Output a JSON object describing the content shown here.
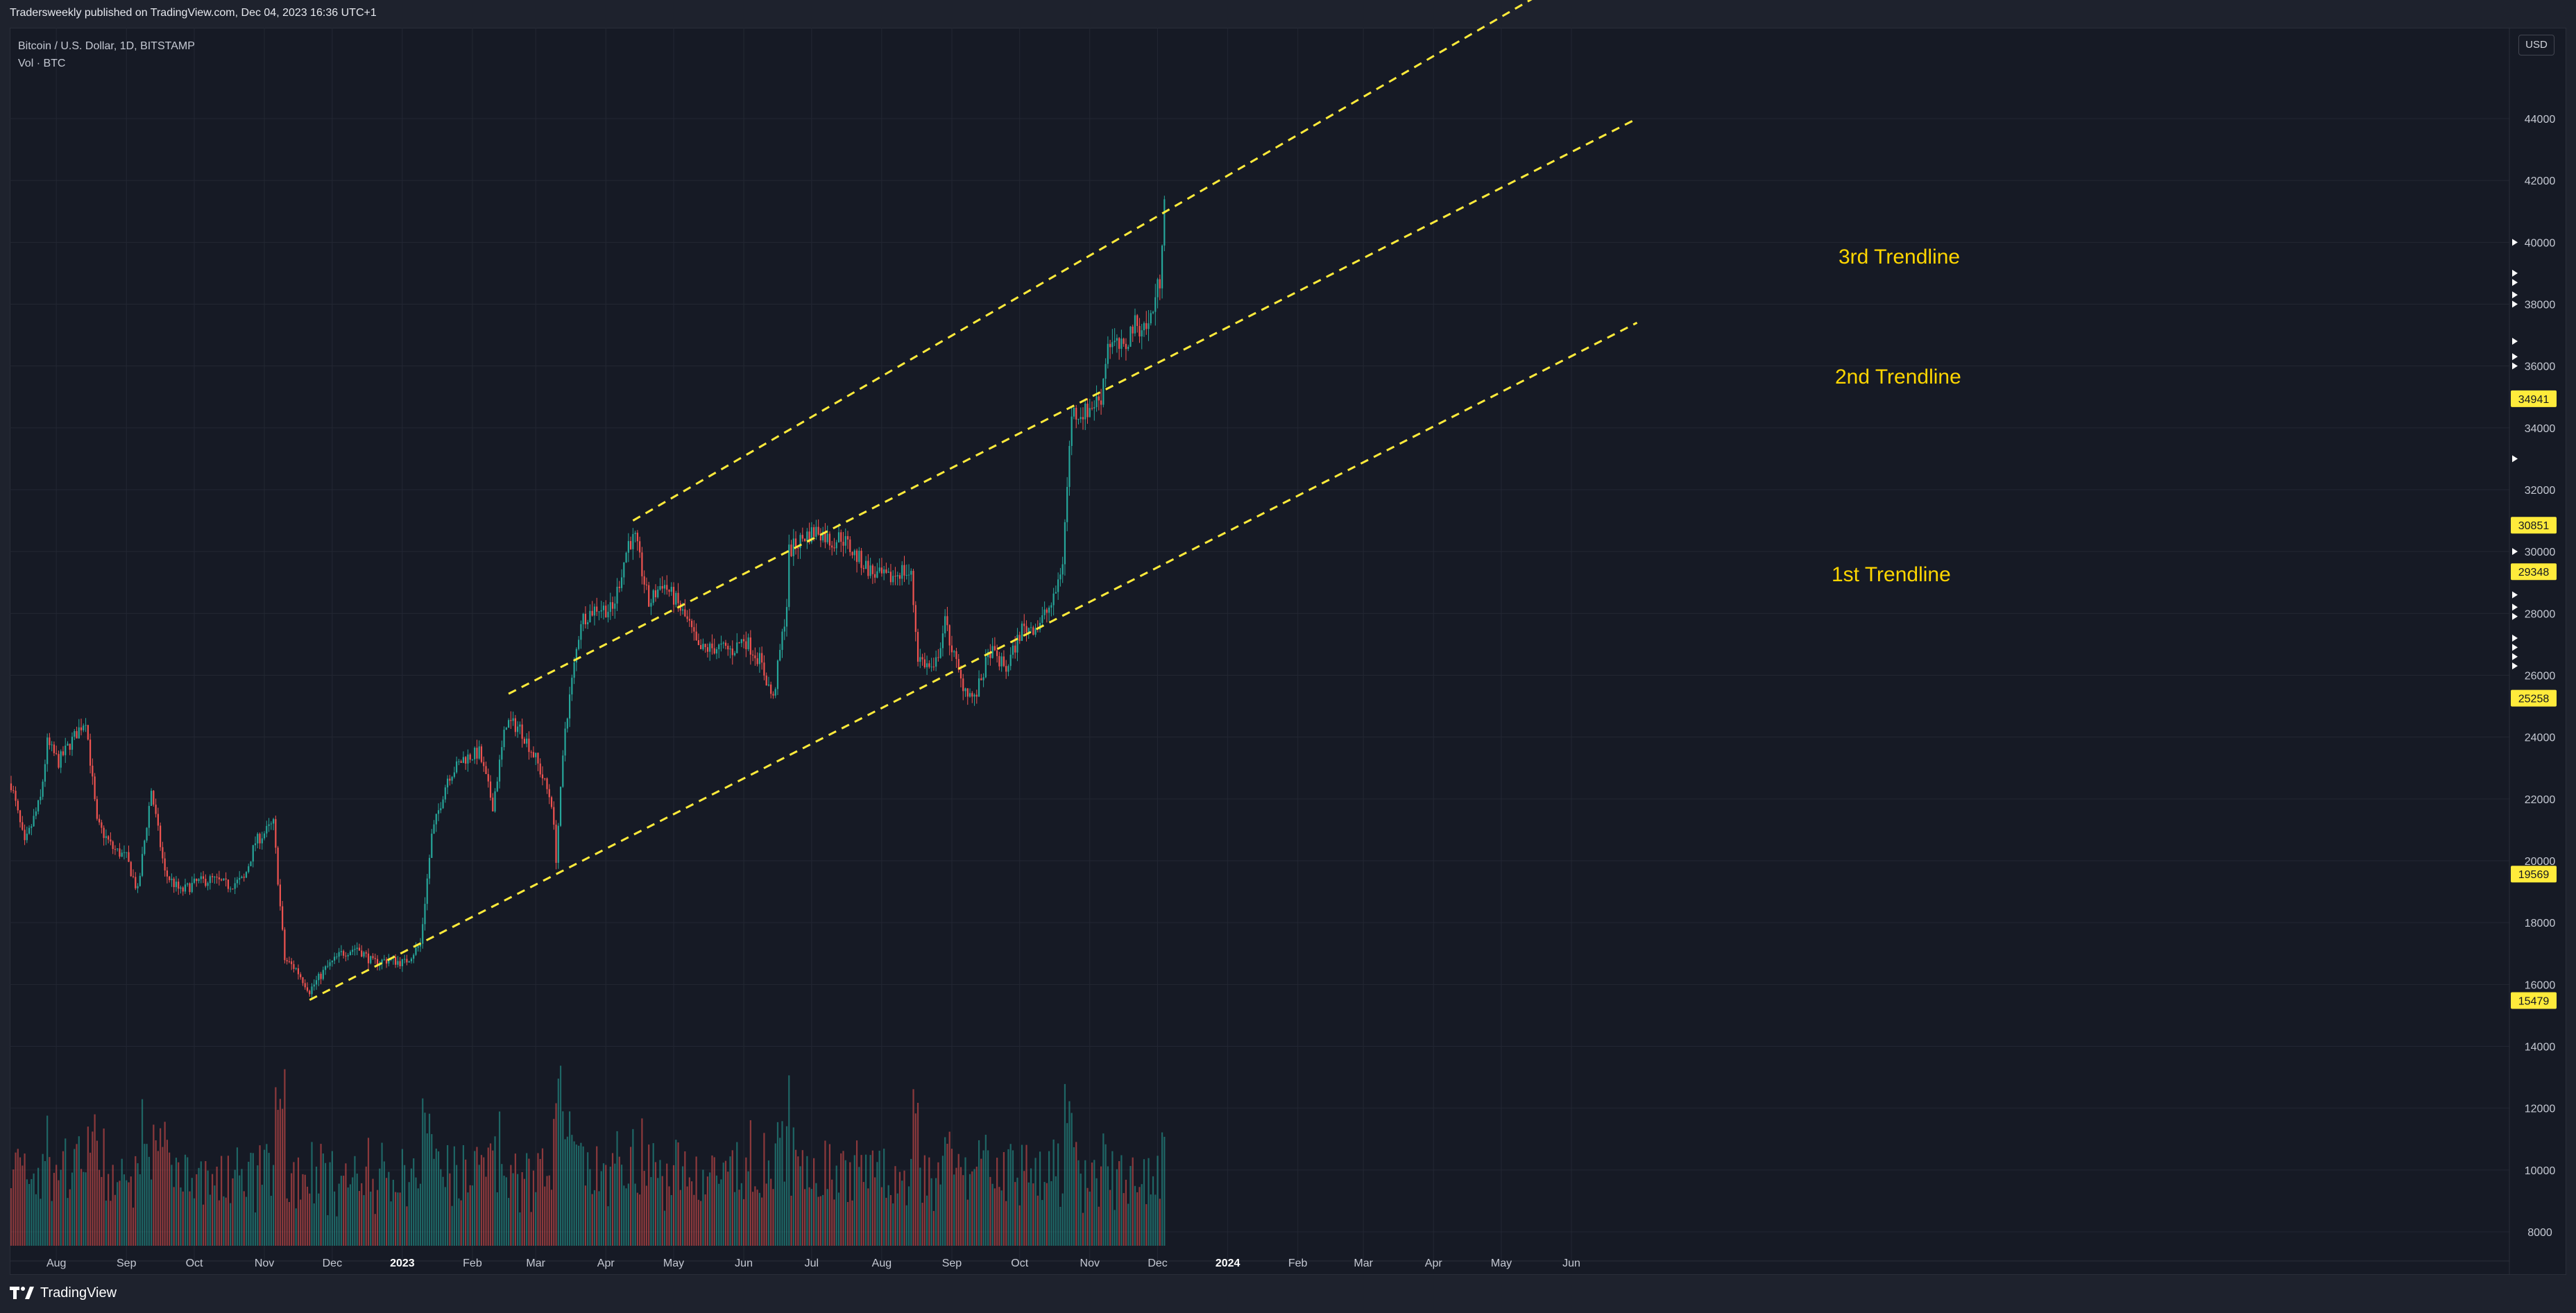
{
  "header": {
    "published_by": "Tradersweekly published on TradingView.com, Dec 04, 2023 16:36 UTC+1"
  },
  "legend": {
    "symbol": "Bitcoin / U.S. Dollar, 1D, BITSTAMP",
    "volume": "Vol · BTC"
  },
  "currency_badge": "USD",
  "footer": {
    "brand": "TradingView",
    "logo_icon": "tradingview-logo-icon"
  },
  "colors": {
    "background": "#161a25",
    "bull": "#26a69a",
    "bear": "#ef5350",
    "trendline": "#ffeb3b",
    "label": "#ffd600",
    "grid": "#232733"
  },
  "chart_data": {
    "type": "candlestick",
    "title": "",
    "xlabel": "",
    "ylabel": "",
    "x_range": [
      "2023-07-12",
      "2024-06-30"
    ],
    "ylim": [
      7000,
      46000
    ],
    "grid": true,
    "x_ticks": [
      "Aug",
      "Sep",
      "Oct",
      "Nov",
      "Dec",
      "2023",
      "Feb",
      "Mar",
      "Apr",
      "May",
      "Jun",
      "Jul",
      "Aug",
      "Sep",
      "Oct",
      "Nov",
      "Dec",
      "2024",
      "Feb",
      "Mar",
      "Apr",
      "May",
      "Jun"
    ],
    "y_ticks": [
      "8000",
      "10000",
      "12000",
      "14000",
      "16000",
      "18000",
      "20000",
      "22000",
      "24000",
      "26000",
      "28000",
      "30000",
      "32000",
      "34000",
      "36000",
      "38000",
      "40000",
      "42000",
      "44000"
    ],
    "price_labels": [
      "34941",
      "30851",
      "29348",
      "25258",
      "19569",
      "15479"
    ],
    "price_label_values": [
      34941,
      30851,
      29348,
      25258,
      19569,
      15479
    ],
    "price_path": [
      [
        "Jul 12",
        22500
      ],
      [
        "Jul 18",
        20500
      ],
      [
        "Jul 25",
        22000
      ],
      [
        "Jul 28",
        23800
      ],
      [
        "Aug 2",
        23200
      ],
      [
        "Aug 8",
        23900
      ],
      [
        "Aug 14",
        24600
      ],
      [
        "Aug 19",
        21200
      ],
      [
        "Aug 26",
        20400
      ],
      [
        "Sep 1",
        20100
      ],
      [
        "Sep 6",
        19000
      ],
      [
        "Sep 12",
        22300
      ],
      [
        "Sep 18",
        19600
      ],
      [
        "Sep 25",
        19000
      ],
      [
        "Oct 2",
        19300
      ],
      [
        "Oct 9",
        19400
      ],
      [
        "Oct 16",
        19200
      ],
      [
        "Oct 23",
        19400
      ],
      [
        "Oct 28",
        20600
      ],
      [
        "Nov 5",
        21200
      ],
      [
        "Nov 8",
        18500
      ],
      [
        "Nov 10",
        16800
      ],
      [
        "Nov 15",
        16500
      ],
      [
        "Nov 21",
        15800
      ],
      [
        "Nov 28",
        16500
      ],
      [
        "Dec 5",
        17000
      ],
      [
        "Dec 12",
        17200
      ],
      [
        "Dec 19",
        16700
      ],
      [
        "Dec 26",
        16800
      ],
      [
        "Jan 2",
        16700
      ],
      [
        "Jan 9",
        17300
      ],
      [
        "Jan 14",
        20800
      ],
      [
        "Jan 21",
        22700
      ],
      [
        "Jan 28",
        23300
      ],
      [
        "Feb 4",
        23500
      ],
      [
        "Feb 10",
        21800
      ],
      [
        "Feb 16",
        24500
      ],
      [
        "Feb 22",
        24300
      ],
      [
        "Mar 1",
        23300
      ],
      [
        "Mar 8",
        21900
      ],
      [
        "Mar 10",
        20100
      ],
      [
        "Mar 14",
        24300
      ],
      [
        "Mar 21",
        27800
      ],
      [
        "Mar 28",
        28200
      ],
      [
        "Apr 4",
        28100
      ],
      [
        "Apr 11",
        30300
      ],
      [
        "Apr 14",
        30400
      ],
      [
        "Apr 20",
        28300
      ],
      [
        "Apr 26",
        29000
      ],
      [
        "May 2",
        28400
      ],
      [
        "May 8",
        27600
      ],
      [
        "May 12",
        26800
      ],
      [
        "May 20",
        26900
      ],
      [
        "May 27",
        26800
      ],
      [
        "Jun 1",
        27200
      ],
      [
        "Jun 8",
        26500
      ],
      [
        "Jun 14",
        25200
      ],
      [
        "Jun 20",
        28300
      ],
      [
        "Jun 21",
        30000
      ],
      [
        "Jun 28",
        30500
      ],
      [
        "Jul 4",
        30700
      ],
      [
        "Jul 10",
        30300
      ],
      [
        "Jul 14",
        30500
      ],
      [
        "Jul 20",
        29900
      ],
      [
        "Jul 28",
        29300
      ],
      [
        "Aug 4",
        29100
      ],
      [
        "Aug 10",
        29400
      ],
      [
        "Aug 14",
        29200
      ],
      [
        "Aug 17",
        26600
      ],
      [
        "Aug 24",
        26100
      ],
      [
        "Aug 29",
        27700
      ],
      [
        "Sep 5",
        25800
      ],
      [
        "Sep 11",
        25200
      ],
      [
        "Sep 18",
        26800
      ],
      [
        "Sep 25",
        26200
      ],
      [
        "Oct 2",
        27500
      ],
      [
        "Oct 9",
        27600
      ],
      [
        "Oct 16",
        28400
      ],
      [
        "Oct 20",
        29700
      ],
      [
        "Oct 24",
        34500
      ],
      [
        "Oct 30",
        34500
      ],
      [
        "Nov 6",
        35000
      ],
      [
        "Nov 9",
        36800
      ],
      [
        "Nov 16",
        36500
      ],
      [
        "Nov 20",
        37300
      ],
      [
        "Nov 27",
        37300
      ],
      [
        "Dec 2",
        38800
      ],
      [
        "Dec 4",
        41700
      ]
    ],
    "trendlines": [
      {
        "label": "1st Trendline",
        "points": [
          [
            "Nov 21",
            15500
          ],
          [
            "2024-06-30",
            37400
          ]
        ]
      },
      {
        "label": "2nd Trendline",
        "points": [
          [
            "Feb 17",
            25400
          ],
          [
            "2024-06-30",
            44000
          ]
        ]
      },
      {
        "label": "3rd Trendline",
        "points": [
          [
            "Apr 13",
            31000
          ],
          [
            "2024-06-22",
            49500
          ]
        ]
      }
    ]
  }
}
